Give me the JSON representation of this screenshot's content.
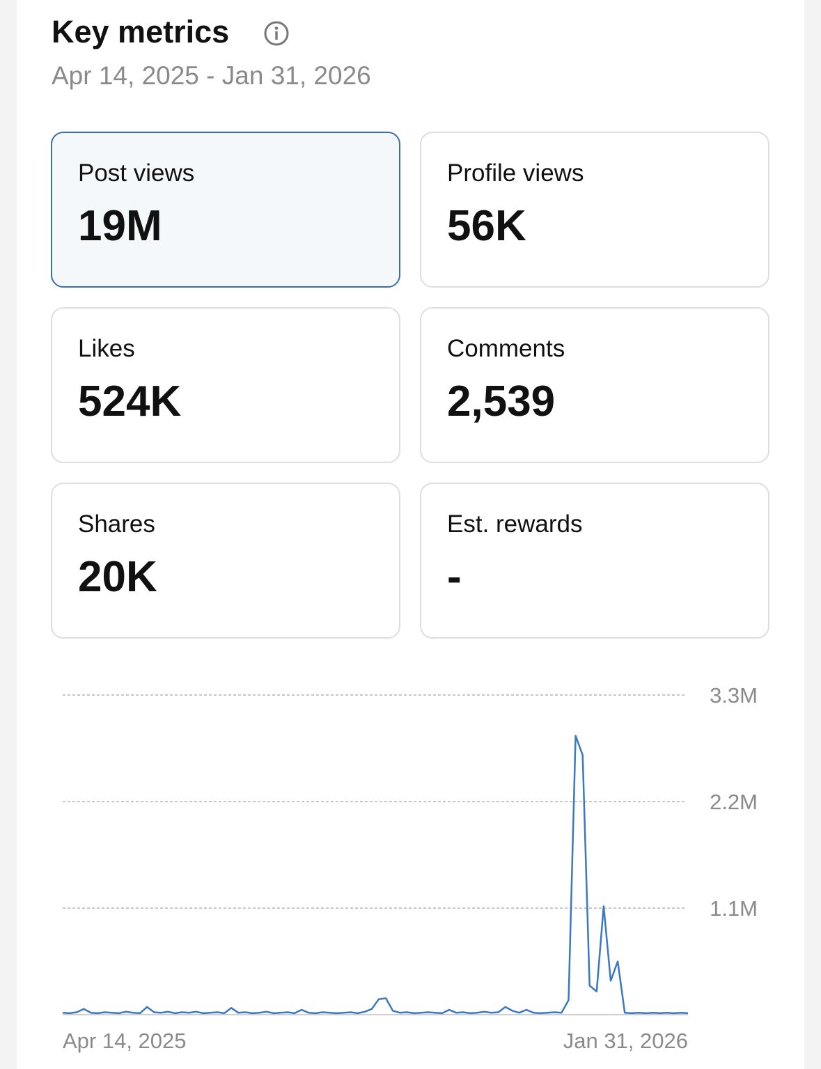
{
  "header": {
    "title": "Key metrics",
    "date_range": "Apr 14, 2025 - Jan 31, 2026"
  },
  "metrics": [
    {
      "label": "Post views",
      "value": "19M"
    },
    {
      "label": "Profile views",
      "value": "56K"
    },
    {
      "label": "Likes",
      "value": "524K"
    },
    {
      "label": "Comments",
      "value": "2,539"
    },
    {
      "label": "Shares",
      "value": "20K"
    },
    {
      "label": "Est. rewards",
      "value": "-"
    }
  ],
  "chart_data": {
    "type": "line",
    "color": "#3b78c4",
    "grid": true,
    "categories": [
      "Apr 14, 2025",
      null,
      null,
      null,
      null,
      null,
      null,
      null,
      null,
      null,
      null,
      null,
      null,
      null,
      null,
      null,
      null,
      null,
      null,
      null,
      null,
      null,
      null,
      null,
      null,
      null,
      null,
      null,
      null,
      null,
      null,
      null,
      null,
      null,
      null,
      null,
      null,
      null,
      null,
      null,
      null,
      null,
      null,
      null,
      null,
      null,
      null,
      null,
      null,
      null,
      null,
      null,
      null,
      null,
      null,
      null,
      null,
      null,
      null,
      null,
      null,
      null,
      null,
      null,
      null,
      null,
      null,
      null,
      null,
      null,
      null,
      null,
      null,
      null,
      null,
      null,
      null,
      null,
      null,
      null,
      null,
      null,
      null,
      null,
      null,
      null,
      null,
      null,
      null,
      "Jan 31, 2026"
    ],
    "values": [
      20000,
      15000,
      25000,
      60000,
      20000,
      15000,
      25000,
      20000,
      15000,
      30000,
      20000,
      15000,
      80000,
      25000,
      20000,
      30000,
      15000,
      25000,
      20000,
      30000,
      15000,
      20000,
      25000,
      15000,
      70000,
      20000,
      25000,
      15000,
      20000,
      30000,
      15000,
      20000,
      25000,
      15000,
      50000,
      20000,
      15000,
      25000,
      20000,
      15000,
      20000,
      25000,
      15000,
      30000,
      60000,
      160000,
      170000,
      40000,
      20000,
      25000,
      15000,
      20000,
      25000,
      20000,
      15000,
      50000,
      20000,
      25000,
      15000,
      20000,
      30000,
      20000,
      25000,
      80000,
      40000,
      20000,
      50000,
      20000,
      15000,
      20000,
      25000,
      20000,
      150000,
      2880000,
      2680000,
      300000,
      240000,
      1120000,
      350000,
      550000,
      20000,
      15000,
      20000,
      15000,
      20000,
      15000,
      20000,
      15000,
      20000,
      15000
    ],
    "ylim": [
      0,
      3300000
    ],
    "yticks": [
      {
        "value": 1100000,
        "label": "1.1M"
      },
      {
        "value": 2200000,
        "label": "2.2M"
      },
      {
        "value": 3300000,
        "label": "3.3M"
      }
    ]
  }
}
